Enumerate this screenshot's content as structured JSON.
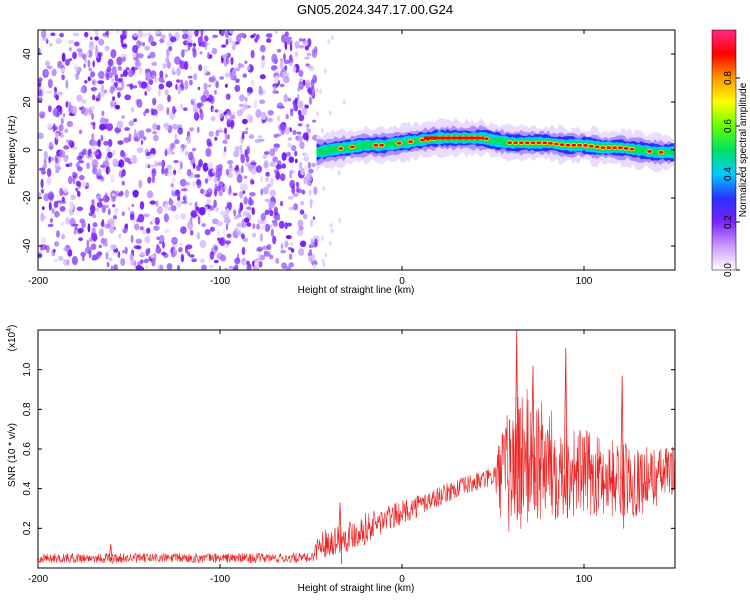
{
  "title": "GN05.2024.347.17.00.G24",
  "chart_data": [
    {
      "type": "heatmap",
      "title": "GN05.2024.347.17.00.G24",
      "xlabel": "Height of straight line (km)",
      "ylabel": "Frequency (Hz)",
      "xlim": [
        -200,
        150
      ],
      "ylim": [
        -50,
        50
      ],
      "xticks": [
        -200,
        -100,
        0,
        100
      ],
      "yticks": [
        -40,
        -20,
        0,
        20,
        40
      ],
      "colorbar": {
        "label": "Normalized spectral amplitude",
        "range": [
          0,
          1
        ],
        "ticks": [
          "0.0",
          "0.2",
          "0.4",
          "0.6",
          "0.8"
        ],
        "colors": [
          "#ffffff",
          "#cc99ff",
          "#7a22ff",
          "#2a30ff",
          "#00ccff",
          "#00e060",
          "#66ff00",
          "#ffff00",
          "#ff9900",
          "#ff0000",
          "#ff2a80"
        ]
      },
      "noise_region_x": [
        -200,
        -47
      ],
      "ridge": {
        "x": [
          -47,
          -40,
          -30,
          -20,
          -10,
          0,
          10,
          20,
          30,
          40,
          45,
          50,
          60,
          70,
          80,
          90,
          100,
          110,
          120,
          130,
          140,
          150
        ],
        "y": [
          -1,
          0,
          1,
          2,
          2,
          3,
          4,
          5,
          5,
          5,
          5,
          4,
          3,
          3,
          3,
          2,
          2,
          1,
          1,
          0,
          -1,
          -1
        ]
      }
    },
    {
      "type": "line",
      "xlabel": "Height of straight line (km)",
      "ylabel": "SNR (10 * v/v)",
      "yscale_label": "(x10",
      "yscale_exp": "4",
      "xlim": [
        -200,
        150
      ],
      "ylim": [
        0,
        1.2
      ],
      "xticks": [
        -200,
        -100,
        0,
        100
      ],
      "yticks": [
        "0.2",
        "0.4",
        "0.6",
        "0.8",
        "1.0"
      ],
      "series": [
        {
          "color": "#ee2222",
          "envelope": {
            "x": [
              -200,
              -100,
              -50,
              -45,
              -30,
              -20,
              -10,
              0,
              10,
              20,
              30,
              40,
              50,
              55,
              60,
              65,
              70,
              80,
              90,
              100,
              110,
              120,
              130,
              140,
              150
            ],
            "mean": [
              0.05,
              0.05,
              0.05,
              0.12,
              0.16,
              0.2,
              0.24,
              0.28,
              0.32,
              0.36,
              0.4,
              0.43,
              0.46,
              0.46,
              0.5,
              0.55,
              0.55,
              0.52,
              0.5,
              0.48,
              0.46,
              0.45,
              0.44,
              0.46,
              0.5
            ],
            "spread": [
              0.025,
              0.025,
              0.025,
              0.07,
              0.08,
              0.08,
              0.07,
              0.06,
              0.06,
              0.05,
              0.05,
              0.05,
              0.05,
              0.25,
              0.35,
              0.4,
              0.35,
              0.3,
              0.25,
              0.22,
              0.2,
              0.2,
              0.18,
              0.15,
              0.12
            ]
          },
          "peaks": [
            {
              "x": -160,
              "y": 0.12
            },
            {
              "x": -34,
              "y": 0.33
            },
            {
              "x": 63,
              "y": 1.2
            },
            {
              "x": 72,
              "y": 1.02
            },
            {
              "x": 90,
              "y": 1.11
            },
            {
              "x": 121,
              "y": 0.97
            }
          ]
        }
      ]
    }
  ]
}
